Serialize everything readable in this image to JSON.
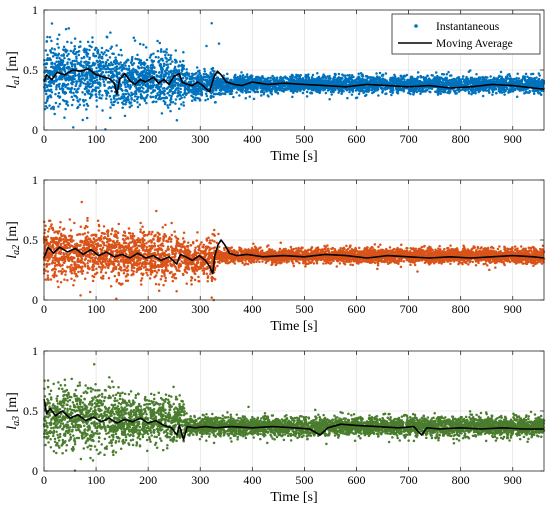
{
  "chart_data": [
    {
      "type": "scatter",
      "ylabel": "l_{a1} [m]",
      "ylabel_main": "l",
      "ylabel_sub": "a1",
      "ylabel_unit": " [m]",
      "xlabel": "Time [s]",
      "xlim": [
        0,
        960
      ],
      "ylim": [
        0,
        1
      ],
      "x_ticks": [
        0,
        100,
        200,
        300,
        400,
        500,
        600,
        700,
        800,
        900
      ],
      "y_ticks": [
        0,
        0.5,
        1
      ],
      "grid": true,
      "legend": {
        "position": "top-right",
        "entries": [
          "Instantaneous",
          "Moving Average"
        ]
      },
      "series": [
        {
          "name": "Instantaneous",
          "kind": "scatter",
          "color": "#0072BD",
          "segments": [
            {
              "t0": 0,
              "t1": 140,
              "base": 0.46,
              "spread": 0.13
            },
            {
              "t0": 140,
              "t1": 270,
              "base": 0.42,
              "spread": 0.11
            },
            {
              "t0": 270,
              "t1": 330,
              "base": 0.38,
              "spread": 0.06
            },
            {
              "t0": 330,
              "t1": 960,
              "base": 0.38,
              "spread": 0.035
            }
          ],
          "outliers": [
            {
              "x": 322,
              "y": 0.89
            },
            {
              "x": 336,
              "y": 0.72
            },
            {
              "x": 312,
              "y": 0.7
            }
          ]
        },
        {
          "name": "Moving Average",
          "kind": "line",
          "color": "#000000",
          "points": [
            [
              0,
              0.4
            ],
            [
              5,
              0.46
            ],
            [
              15,
              0.42
            ],
            [
              25,
              0.48
            ],
            [
              40,
              0.46
            ],
            [
              55,
              0.5
            ],
            [
              70,
              0.49
            ],
            [
              85,
              0.51
            ],
            [
              100,
              0.46
            ],
            [
              115,
              0.44
            ],
            [
              125,
              0.43
            ],
            [
              135,
              0.39
            ],
            [
              140,
              0.3
            ],
            [
              145,
              0.42
            ],
            [
              155,
              0.47
            ],
            [
              165,
              0.41
            ],
            [
              175,
              0.38
            ],
            [
              185,
              0.42
            ],
            [
              195,
              0.4
            ],
            [
              210,
              0.44
            ],
            [
              220,
              0.39
            ],
            [
              230,
              0.42
            ],
            [
              240,
              0.38
            ],
            [
              250,
              0.45
            ],
            [
              260,
              0.47
            ],
            [
              265,
              0.4
            ],
            [
              275,
              0.38
            ],
            [
              285,
              0.37
            ],
            [
              295,
              0.4
            ],
            [
              305,
              0.37
            ],
            [
              312,
              0.34
            ],
            [
              318,
              0.32
            ],
            [
              322,
              0.38
            ],
            [
              327,
              0.45
            ],
            [
              333,
              0.49
            ],
            [
              340,
              0.46
            ],
            [
              350,
              0.4
            ],
            [
              365,
              0.38
            ],
            [
              380,
              0.37
            ],
            [
              400,
              0.4
            ],
            [
              430,
              0.38
            ],
            [
              460,
              0.39
            ],
            [
              500,
              0.38
            ],
            [
              540,
              0.37
            ],
            [
              580,
              0.36
            ],
            [
              620,
              0.38
            ],
            [
              660,
              0.37
            ],
            [
              700,
              0.36
            ],
            [
              740,
              0.37
            ],
            [
              780,
              0.35
            ],
            [
              820,
              0.36
            ],
            [
              860,
              0.38
            ],
            [
              900,
              0.37
            ],
            [
              940,
              0.35
            ],
            [
              960,
              0.34
            ]
          ]
        }
      ]
    },
    {
      "type": "scatter",
      "ylabel": "l_{a2} [m]",
      "ylabel_main": "l",
      "ylabel_sub": "a2",
      "ylabel_unit": " [m]",
      "xlabel": "Time [s]",
      "xlim": [
        0,
        960
      ],
      "ylim": [
        0,
        1
      ],
      "x_ticks": [
        0,
        100,
        200,
        300,
        400,
        500,
        600,
        700,
        800,
        900
      ],
      "y_ticks": [
        0,
        0.5,
        1
      ],
      "grid": true,
      "series": [
        {
          "kind": "scatter",
          "color": "#D95319",
          "segments": [
            {
              "t0": 0,
              "t1": 140,
              "base": 0.4,
              "spread": 0.11
            },
            {
              "t0": 140,
              "t1": 270,
              "base": 0.37,
              "spread": 0.1
            },
            {
              "t0": 270,
              "t1": 330,
              "base": 0.34,
              "spread": 0.08
            },
            {
              "t0": 330,
              "t1": 960,
              "base": 0.37,
              "spread": 0.03
            }
          ],
          "outliers": [
            {
              "x": 322,
              "y": 0.02
            },
            {
              "x": 326,
              "y": 0.0
            },
            {
              "x": 12,
              "y": 0.66
            },
            {
              "x": 335,
              "y": 0.55
            }
          ]
        },
        {
          "kind": "line",
          "color": "#000000",
          "points": [
            [
              0,
              0.35
            ],
            [
              8,
              0.44
            ],
            [
              18,
              0.39
            ],
            [
              30,
              0.44
            ],
            [
              45,
              0.4
            ],
            [
              60,
              0.43
            ],
            [
              75,
              0.38
            ],
            [
              90,
              0.42
            ],
            [
              105,
              0.37
            ],
            [
              120,
              0.4
            ],
            [
              135,
              0.36
            ],
            [
              150,
              0.38
            ],
            [
              165,
              0.35
            ],
            [
              180,
              0.39
            ],
            [
              195,
              0.35
            ],
            [
              210,
              0.37
            ],
            [
              225,
              0.33
            ],
            [
              240,
              0.36
            ],
            [
              255,
              0.3
            ],
            [
              262,
              0.38
            ],
            [
              272,
              0.36
            ],
            [
              285,
              0.33
            ],
            [
              298,
              0.37
            ],
            [
              310,
              0.33
            ],
            [
              318,
              0.28
            ],
            [
              324,
              0.22
            ],
            [
              328,
              0.37
            ],
            [
              334,
              0.46
            ],
            [
              340,
              0.5
            ],
            [
              347,
              0.46
            ],
            [
              356,
              0.39
            ],
            [
              370,
              0.37
            ],
            [
              390,
              0.38
            ],
            [
              420,
              0.36
            ],
            [
              460,
              0.37
            ],
            [
              500,
              0.36
            ],
            [
              540,
              0.38
            ],
            [
              580,
              0.37
            ],
            [
              620,
              0.35
            ],
            [
              660,
              0.37
            ],
            [
              700,
              0.36
            ],
            [
              740,
              0.35
            ],
            [
              780,
              0.36
            ],
            [
              820,
              0.35
            ],
            [
              860,
              0.36
            ],
            [
              900,
              0.37
            ],
            [
              940,
              0.36
            ],
            [
              960,
              0.35
            ]
          ]
        }
      ]
    },
    {
      "type": "scatter",
      "ylabel": "l_{a3} [m]",
      "ylabel_main": "l",
      "ylabel_sub": "a3",
      "ylabel_unit": " [m]",
      "xlabel": "Time [s]",
      "xlim": [
        0,
        960
      ],
      "ylim": [
        0,
        1
      ],
      "x_ticks": [
        0,
        100,
        200,
        300,
        400,
        500,
        600,
        700,
        800,
        900
      ],
      "y_ticks": [
        0,
        0.5,
        1
      ],
      "grid": true,
      "series": [
        {
          "kind": "scatter",
          "color": "#4A7C2E",
          "segments": [
            {
              "t0": 0,
              "t1": 140,
              "base": 0.44,
              "spread": 0.13
            },
            {
              "t0": 140,
              "t1": 270,
              "base": 0.42,
              "spread": 0.1
            },
            {
              "t0": 270,
              "t1": 960,
              "base": 0.37,
              "spread": 0.04
            }
          ],
          "outliers": [
            {
              "x": 40,
              "y": 0.76
            },
            {
              "x": 8,
              "y": 0.7
            },
            {
              "x": 95,
              "y": 0.25
            }
          ]
        },
        {
          "kind": "line",
          "color": "#000000",
          "points": [
            [
              0,
              0.6
            ],
            [
              5,
              0.48
            ],
            [
              12,
              0.52
            ],
            [
              22,
              0.46
            ],
            [
              35,
              0.5
            ],
            [
              50,
              0.44
            ],
            [
              65,
              0.47
            ],
            [
              80,
              0.42
            ],
            [
              95,
              0.45
            ],
            [
              110,
              0.41
            ],
            [
              125,
              0.44
            ],
            [
              140,
              0.4
            ],
            [
              155,
              0.43
            ],
            [
              170,
              0.41
            ],
            [
              185,
              0.44
            ],
            [
              200,
              0.4
            ],
            [
              215,
              0.42
            ],
            [
              230,
              0.38
            ],
            [
              245,
              0.36
            ],
            [
              255,
              0.3
            ],
            [
              260,
              0.38
            ],
            [
              268,
              0.26
            ],
            [
              275,
              0.37
            ],
            [
              290,
              0.36
            ],
            [
              310,
              0.37
            ],
            [
              330,
              0.36
            ],
            [
              360,
              0.37
            ],
            [
              400,
              0.36
            ],
            [
              440,
              0.37
            ],
            [
              480,
              0.36
            ],
            [
              510,
              0.35
            ],
            [
              530,
              0.3
            ],
            [
              545,
              0.36
            ],
            [
              570,
              0.39
            ],
            [
              600,
              0.38
            ],
            [
              640,
              0.37
            ],
            [
              680,
              0.36
            ],
            [
              710,
              0.37
            ],
            [
              725,
              0.3
            ],
            [
              735,
              0.36
            ],
            [
              760,
              0.35
            ],
            [
              800,
              0.36
            ],
            [
              840,
              0.35
            ],
            [
              880,
              0.36
            ],
            [
              920,
              0.35
            ],
            [
              960,
              0.35
            ]
          ]
        }
      ]
    }
  ]
}
